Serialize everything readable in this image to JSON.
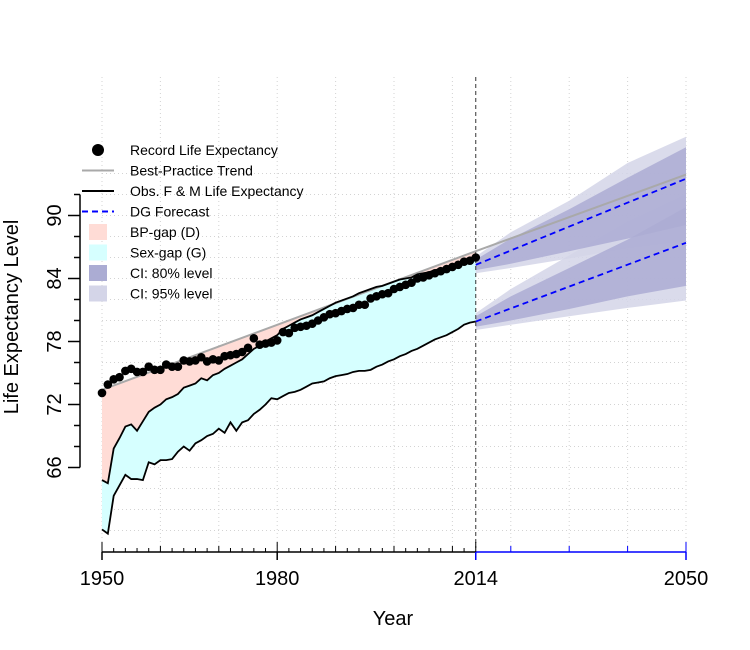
{
  "chart_data": {
    "type": "line",
    "title": "",
    "xlabel": "Year",
    "ylabel": "Life Expectancy Level",
    "xlim": [
      1950,
      2050
    ],
    "ylim": [
      59,
      96
    ],
    "x_ticks": [
      1950,
      1980,
      2014,
      2050
    ],
    "x_tick_labels": [
      "1950",
      "1980",
      "2014",
      "2050"
    ],
    "y_ticks": [
      66,
      72,
      78,
      84,
      90
    ],
    "y_tick_labels": [
      "66",
      "72",
      "78",
      "84",
      "90"
    ],
    "jump_off_year": 2014,
    "grid": true,
    "legend_position": "top-left",
    "legend": [
      {
        "label": "Record Life Expectancy",
        "kind": "point",
        "color": "#000000"
      },
      {
        "label": "Best-Practice Trend",
        "kind": "line",
        "color": "#a9a9a9"
      },
      {
        "label": "Obs. F & M Life Expectancy",
        "kind": "line",
        "color": "#000000"
      },
      {
        "label": "DG Forecast",
        "kind": "dashed",
        "color": "#0000ff"
      },
      {
        "label": "BP-gap (D)",
        "kind": "fill",
        "color": "#ffdcd6"
      },
      {
        "label": "Sex-gap (G)",
        "kind": "fill",
        "color": "#d6ffff"
      },
      {
        "label": "CI: 80% level",
        "kind": "fill",
        "color": "#abacd3"
      },
      {
        "label": "CI: 95% level",
        "kind": "fill",
        "color": "#d4d5e8"
      }
    ],
    "series": [
      {
        "name": "Record Life Expectancy",
        "years": [
          1950,
          1951,
          1952,
          1953,
          1954,
          1955,
          1956,
          1957,
          1958,
          1959,
          1960,
          1961,
          1962,
          1963,
          1964,
          1965,
          1966,
          1967,
          1968,
          1969,
          1970,
          1971,
          1972,
          1973,
          1974,
          1975,
          1976,
          1977,
          1978,
          1979,
          1980,
          1981,
          1982,
          1983,
          1984,
          1985,
          1986,
          1987,
          1988,
          1989,
          1990,
          1991,
          1992,
          1993,
          1994,
          1995,
          1996,
          1997,
          1998,
          1999,
          2000,
          2001,
          2002,
          2003,
          2004,
          2005,
          2006,
          2007,
          2008,
          2009,
          2010,
          2011,
          2012,
          2013,
          2014
        ],
        "values": [
          73.1,
          73.9,
          74.4,
          74.6,
          75.2,
          75.4,
          75.1,
          75.1,
          75.6,
          75.3,
          75.3,
          75.8,
          75.6,
          75.6,
          76.2,
          76.1,
          76.2,
          76.5,
          76.1,
          76.3,
          76.2,
          76.6,
          76.7,
          76.8,
          77.0,
          77.4,
          78.3,
          77.7,
          77.8,
          77.9,
          78.1,
          78.9,
          78.8,
          79.3,
          79.4,
          79.5,
          79.7,
          80.0,
          80.3,
          80.6,
          80.7,
          80.9,
          81.1,
          81.2,
          81.5,
          81.5,
          82.1,
          82.3,
          82.5,
          82.6,
          83.0,
          83.2,
          83.4,
          83.6,
          84.0,
          84.1,
          84.3,
          84.5,
          84.7,
          84.9,
          85.1,
          85.3,
          85.6,
          85.7,
          86.0
        ]
      },
      {
        "name": "Best-Practice Trend",
        "years": [
          1950,
          2014,
          2050
        ],
        "values": [
          73.4,
          86.6,
          93.9
        ]
      },
      {
        "name": "Obs. F & M Life Expectancy (female)",
        "years": [
          1950,
          1951,
          1952,
          1953,
          1954,
          1955,
          1956,
          1957,
          1958,
          1959,
          1960,
          1961,
          1962,
          1963,
          1964,
          1965,
          1966,
          1967,
          1968,
          1969,
          1970,
          1971,
          1972,
          1973,
          1974,
          1975,
          1976,
          1977,
          1978,
          1979,
          1980,
          1981,
          1982,
          1983,
          1984,
          1985,
          1986,
          1987,
          1988,
          1989,
          1990,
          1991,
          1992,
          1993,
          1994,
          1995,
          1996,
          1997,
          1998,
          1999,
          2000,
          2001,
          2002,
          2003,
          2004,
          2005,
          2006,
          2007,
          2008,
          2009,
          2010,
          2011,
          2012,
          2013,
          2014
        ],
        "values": [
          64.8,
          64.5,
          67.8,
          68.8,
          69.9,
          70.1,
          69.5,
          70.4,
          71.3,
          71.7,
          72.0,
          72.5,
          72.7,
          73.0,
          73.6,
          73.8,
          74.0,
          74.5,
          74.3,
          74.8,
          75.0,
          75.4,
          75.7,
          76.0,
          76.3,
          76.8,
          77.3,
          77.6,
          78.0,
          78.3,
          78.6,
          79.2,
          79.5,
          79.8,
          80.1,
          80.3,
          80.5,
          80.8,
          81.1,
          81.4,
          81.7,
          81.9,
          82.1,
          82.3,
          82.6,
          82.8,
          83.0,
          83.2,
          83.3,
          83.5,
          83.7,
          83.9,
          84.0,
          84.1,
          84.4,
          84.5,
          84.6,
          84.8,
          84.9,
          85.1,
          85.3,
          85.4,
          85.5,
          85.6,
          85.9
        ]
      },
      {
        "name": "Obs. F & M Life Expectancy (male)",
        "years": [
          1950,
          1951,
          1952,
          1953,
          1954,
          1955,
          1956,
          1957,
          1958,
          1959,
          1960,
          1961,
          1962,
          1963,
          1964,
          1965,
          1966,
          1967,
          1968,
          1969,
          1970,
          1971,
          1972,
          1973,
          1974,
          1975,
          1976,
          1977,
          1978,
          1979,
          1980,
          1981,
          1982,
          1983,
          1984,
          1985,
          1986,
          1987,
          1988,
          1989,
          1990,
          1991,
          1992,
          1993,
          1994,
          1995,
          1996,
          1997,
          1998,
          1999,
          2000,
          2001,
          2002,
          2003,
          2004,
          2005,
          2006,
          2007,
          2008,
          2009,
          2010,
          2011,
          2012,
          2013,
          2014
        ],
        "values": [
          60.1,
          59.7,
          63.3,
          64.3,
          65.3,
          64.9,
          64.9,
          64.8,
          66.5,
          66.3,
          66.7,
          66.7,
          66.8,
          67.5,
          68.0,
          67.6,
          68.3,
          68.6,
          69.0,
          69.2,
          69.7,
          69.3,
          70.3,
          69.5,
          70.3,
          70.5,
          71.1,
          71.5,
          72.0,
          72.6,
          72.5,
          72.8,
          73.1,
          73.2,
          73.4,
          73.7,
          74.0,
          74.1,
          74.2,
          74.5,
          74.7,
          74.8,
          74.9,
          75.1,
          75.2,
          75.2,
          75.3,
          75.6,
          75.8,
          76.1,
          76.3,
          76.6,
          76.8,
          77.1,
          77.3,
          77.6,
          77.9,
          78.2,
          78.4,
          78.6,
          78.9,
          79.2,
          79.6,
          79.8,
          79.9
        ]
      },
      {
        "name": "DG Forecast (female)",
        "years": [
          2014,
          2050
        ],
        "values": [
          85.3,
          93.5
        ]
      },
      {
        "name": "DG Forecast (male)",
        "years": [
          2014,
          2050
        ],
        "values": [
          79.9,
          87.4
        ]
      }
    ],
    "intervals": [
      {
        "level": "80%",
        "years": [
          2014,
          2020,
          2030,
          2040,
          2050
        ],
        "female_lower": [
          84.8,
          85.4,
          86.6,
          87.8,
          89.1
        ],
        "female_upper": [
          85.8,
          87.8,
          90.6,
          93.6,
          96.5
        ],
        "male_lower": [
          79.4,
          80.0,
          81.1,
          82.3,
          83.3
        ],
        "male_upper": [
          80.4,
          82.3,
          85.0,
          87.7,
          90.8
        ]
      },
      {
        "level": "95%",
        "years": [
          2014,
          2020,
          2030,
          2040,
          2050
        ],
        "female_lower": [
          84.5,
          85.0,
          85.9,
          86.9,
          87.6
        ],
        "female_upper": [
          86.1,
          88.4,
          91.4,
          95.0,
          97.5
        ],
        "male_lower": [
          79.1,
          79.6,
          80.4,
          81.2,
          81.9
        ],
        "male_upper": [
          80.7,
          83.0,
          86.2,
          89.4,
          92.0
        ]
      }
    ]
  }
}
